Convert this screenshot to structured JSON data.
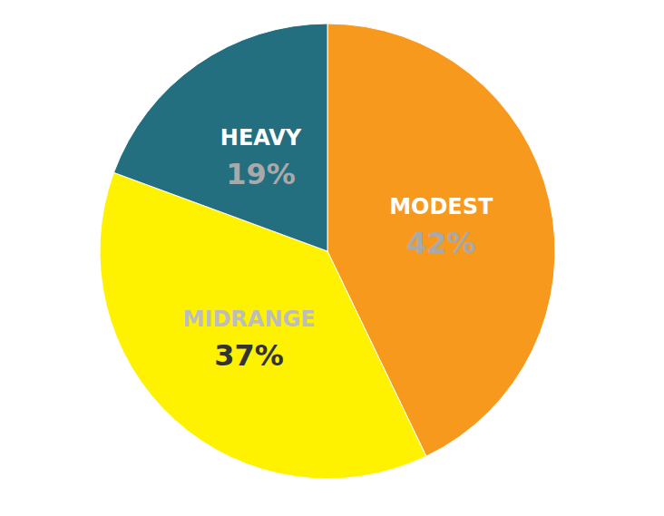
{
  "chart_data": {
    "type": "pie",
    "categories": [
      "MODEST",
      "MIDRANGE",
      "HEAVY"
    ],
    "values": [
      42,
      37,
      19
    ],
    "value_labels": [
      "42%",
      "37%",
      "19%"
    ],
    "colors": [
      "#f7991d",
      "#fff200",
      "#236f80"
    ],
    "data_labels": true
  }
}
